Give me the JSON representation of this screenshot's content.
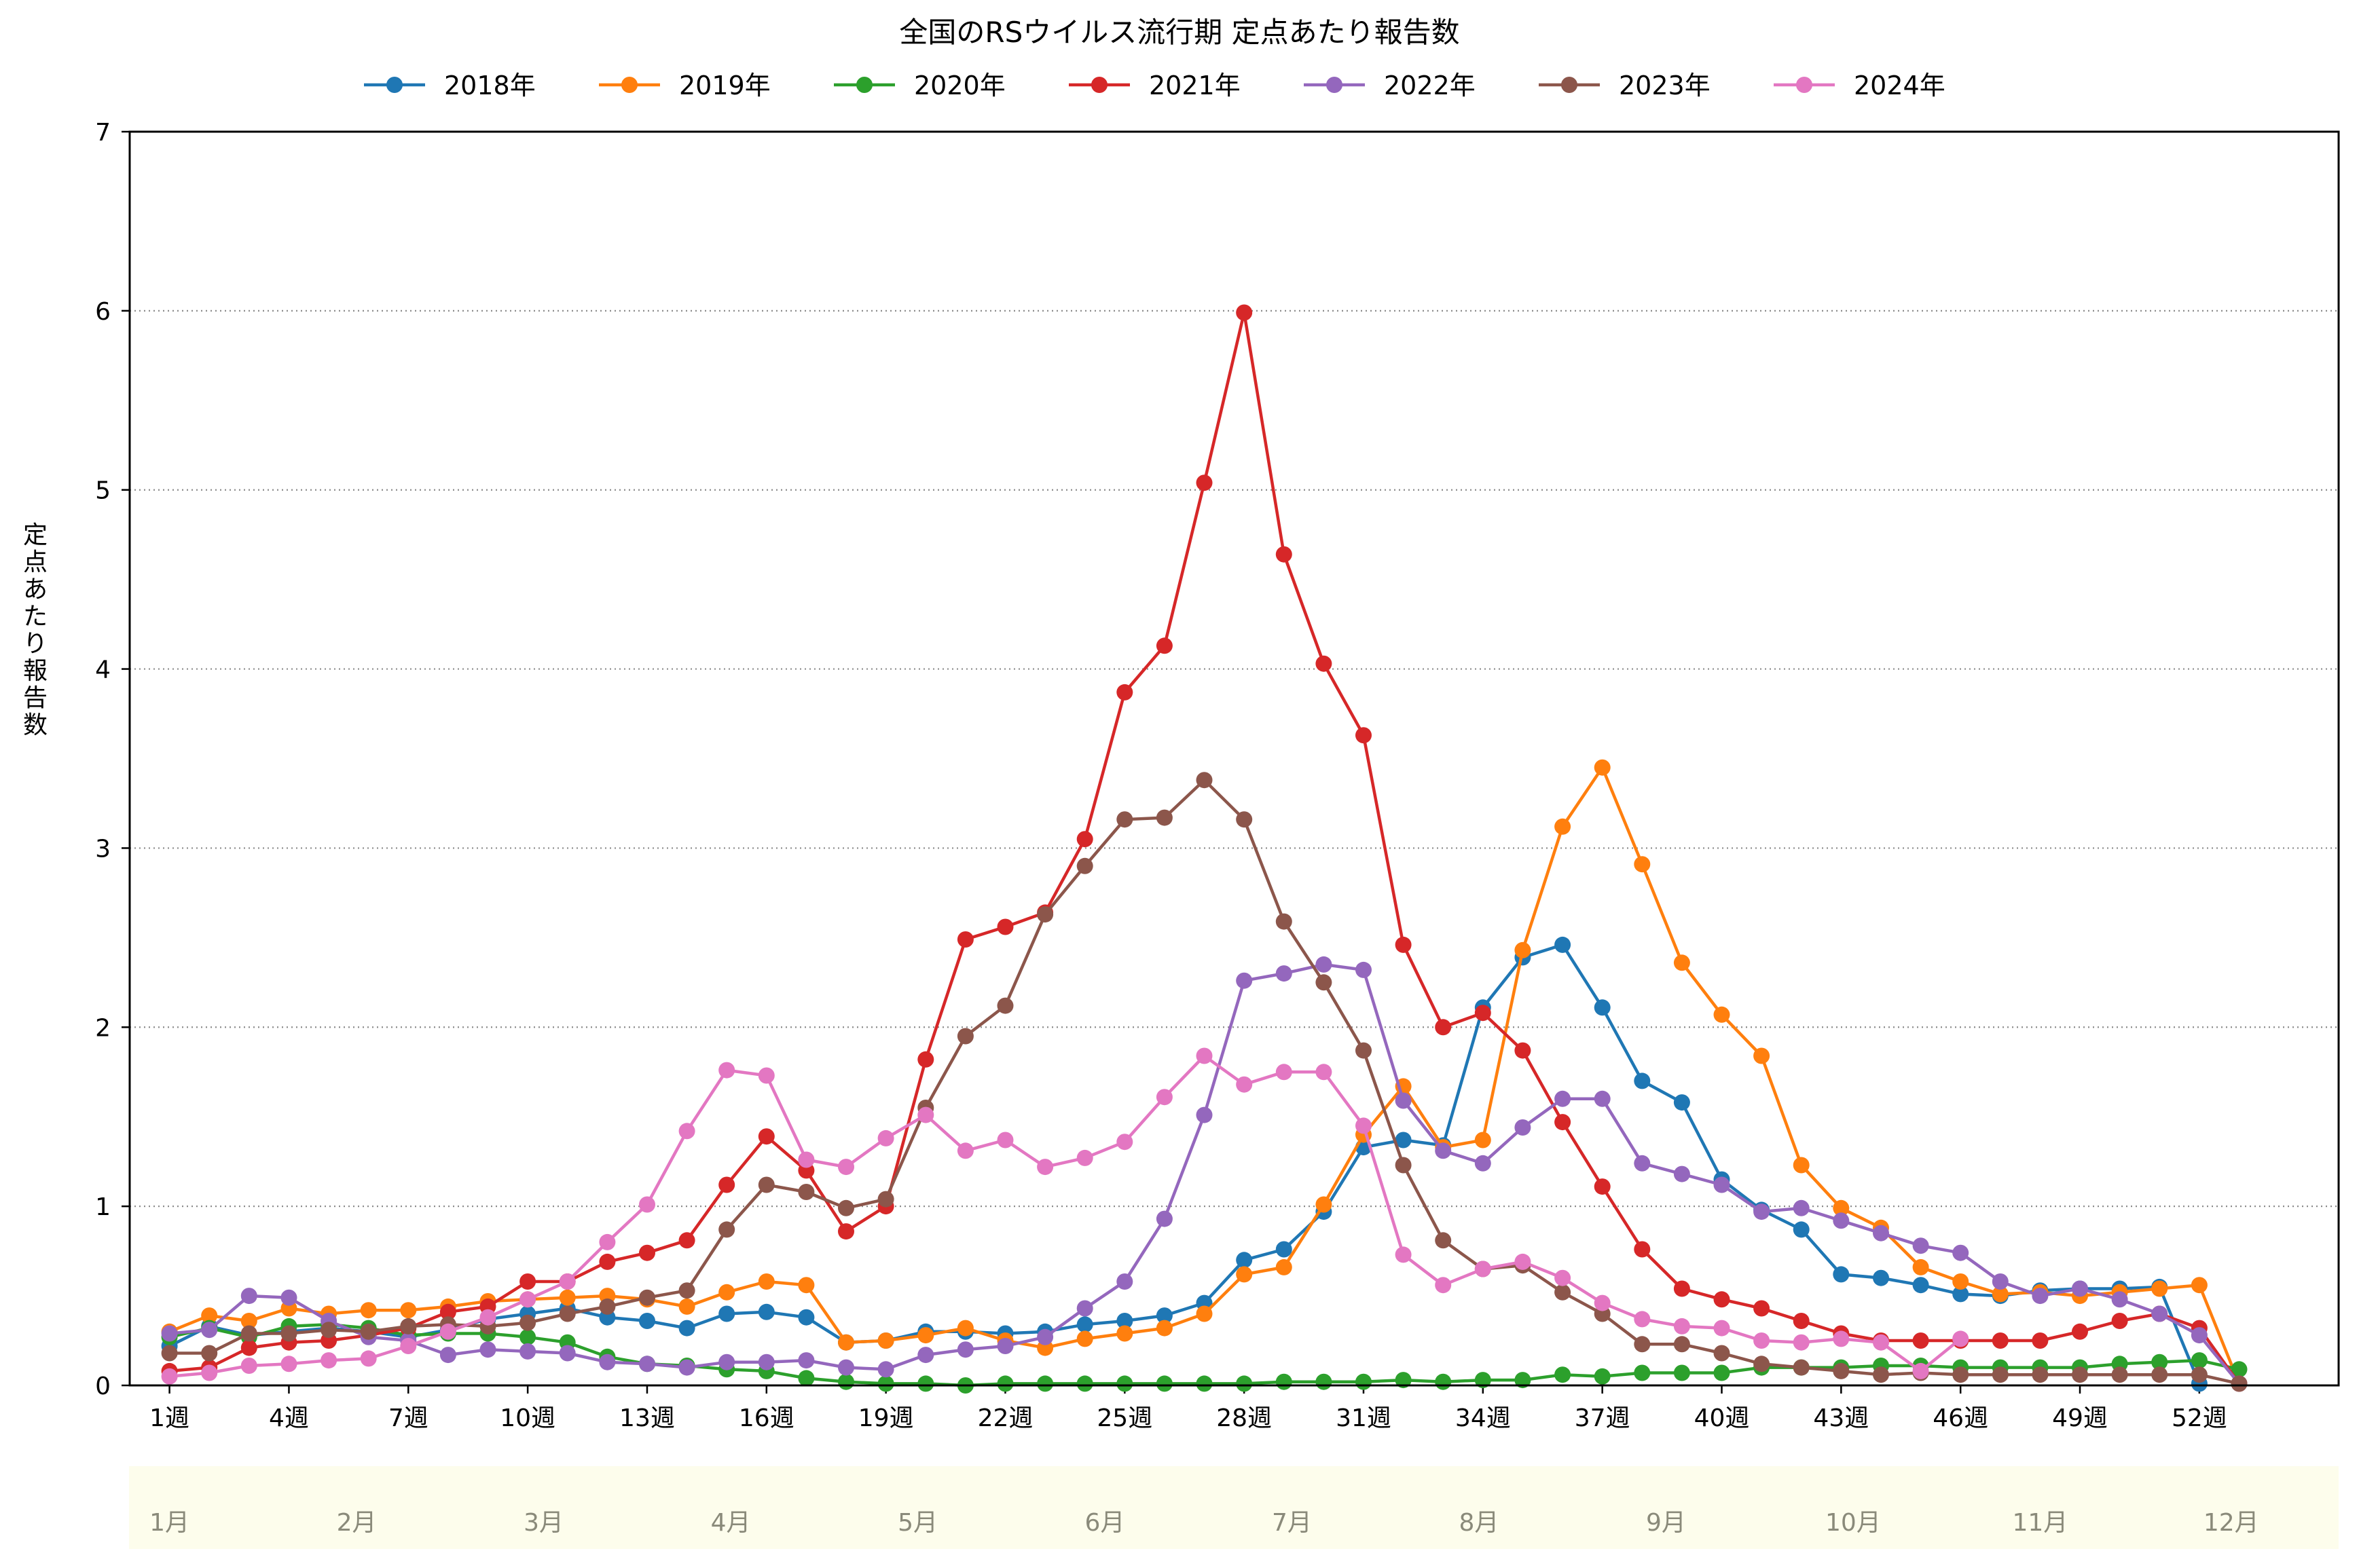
{
  "chart_data": {
    "type": "line",
    "title": "全国のRSウイルス流行期 定点あたり報告数",
    "ylabel": "定点あたり報告数",
    "xlabel": "",
    "ylim": [
      0,
      7
    ],
    "yticks": [
      0,
      1,
      2,
      3,
      4,
      5,
      6,
      7
    ],
    "x": [
      1,
      2,
      3,
      4,
      5,
      6,
      7,
      8,
      9,
      10,
      11,
      12,
      13,
      14,
      15,
      16,
      17,
      18,
      19,
      20,
      21,
      22,
      23,
      24,
      25,
      26,
      27,
      28,
      29,
      30,
      31,
      32,
      33,
      34,
      35,
      36,
      37,
      38,
      39,
      40,
      41,
      42,
      43,
      44,
      45,
      46,
      47,
      48,
      49,
      50,
      51,
      52,
      53
    ],
    "xticks": [
      {
        "week": 1,
        "label": "1週"
      },
      {
        "week": 4,
        "label": "4週"
      },
      {
        "week": 7,
        "label": "7週"
      },
      {
        "week": 10,
        "label": "10週"
      },
      {
        "week": 13,
        "label": "13週"
      },
      {
        "week": 16,
        "label": "16週"
      },
      {
        "week": 19,
        "label": "19週"
      },
      {
        "week": 22,
        "label": "22週"
      },
      {
        "week": 25,
        "label": "25週"
      },
      {
        "week": 28,
        "label": "28週"
      },
      {
        "week": 31,
        "label": "31週"
      },
      {
        "week": 34,
        "label": "34週"
      },
      {
        "week": 37,
        "label": "37週"
      },
      {
        "week": 40,
        "label": "40週"
      },
      {
        "week": 43,
        "label": "43週"
      },
      {
        "week": 46,
        "label": "46週"
      },
      {
        "week": 49,
        "label": "49週"
      },
      {
        "week": 52,
        "label": "52週"
      }
    ],
    "months": [
      {
        "label": "1月",
        "week": 1
      },
      {
        "label": "2月",
        "week": 5.7
      },
      {
        "label": "3月",
        "week": 10.4
      },
      {
        "label": "4月",
        "week": 15.1
      },
      {
        "label": "5月",
        "week": 19.8
      },
      {
        "label": "6月",
        "week": 24.5
      },
      {
        "label": "7月",
        "week": 29.2
      },
      {
        "label": "8月",
        "week": 33.9
      },
      {
        "label": "9月",
        "week": 38.6
      },
      {
        "label": "10月",
        "week": 43.3
      },
      {
        "label": "11月",
        "week": 48
      },
      {
        "label": "12月",
        "week": 52.8
      }
    ],
    "grid": "horizontal dotted",
    "legend": "top-center",
    "series": [
      {
        "name": "2018年",
        "color": "#1f77b4",
        "values": [
          0.22,
          0.33,
          0.28,
          0.3,
          0.32,
          0.3,
          0.27,
          0.31,
          0.37,
          0.4,
          0.43,
          0.38,
          0.36,
          0.32,
          0.4,
          0.41,
          0.38,
          0.24,
          0.25,
          0.3,
          0.3,
          0.29,
          0.3,
          0.34,
          0.36,
          0.39,
          0.46,
          0.7,
          0.76,
          0.97,
          1.33,
          1.37,
          1.34,
          2.11,
          2.39,
          2.46,
          2.11,
          1.7,
          1.58,
          1.15,
          0.98,
          0.87,
          0.62,
          0.6,
          0.56,
          0.51,
          0.5,
          0.53,
          0.54,
          0.54,
          0.55,
          0.01,
          null
        ]
      },
      {
        "name": "2019年",
        "color": "#ff7f0e",
        "values": [
          0.3,
          0.39,
          0.36,
          0.43,
          0.4,
          0.42,
          0.42,
          0.44,
          0.47,
          0.48,
          0.49,
          0.5,
          0.48,
          0.44,
          0.52,
          0.58,
          0.56,
          0.24,
          0.25,
          0.28,
          0.32,
          0.25,
          0.21,
          0.26,
          0.29,
          0.32,
          0.4,
          0.62,
          0.66,
          1.01,
          1.4,
          1.67,
          1.33,
          1.37,
          2.43,
          3.12,
          3.45,
          2.91,
          2.36,
          2.07,
          1.84,
          1.23,
          0.99,
          0.88,
          0.66,
          0.58,
          0.51,
          0.52,
          0.5,
          0.52,
          0.54,
          0.56,
          0.01
        ]
      },
      {
        "name": "2020年",
        "color": "#2ca02c",
        "values": [
          0.27,
          0.32,
          0.27,
          0.33,
          0.34,
          0.32,
          0.28,
          0.29,
          0.29,
          0.27,
          0.24,
          0.16,
          0.12,
          0.11,
          0.09,
          0.08,
          0.04,
          0.02,
          0.01,
          0.01,
          0.0,
          0.01,
          0.01,
          0.01,
          0.01,
          0.01,
          0.01,
          0.01,
          0.02,
          0.02,
          0.02,
          0.03,
          0.02,
          0.03,
          0.03,
          0.06,
          0.05,
          0.07,
          0.07,
          0.07,
          0.1,
          0.1,
          0.1,
          0.11,
          0.11,
          0.1,
          0.1,
          0.1,
          0.1,
          0.12,
          0.13,
          0.14,
          0.09
        ]
      },
      {
        "name": "2021年",
        "color": "#d62728",
        "values": [
          0.08,
          0.1,
          0.21,
          0.24,
          0.25,
          0.28,
          0.32,
          0.41,
          0.44,
          0.58,
          0.58,
          0.69,
          0.74,
          0.81,
          1.12,
          1.39,
          1.2,
          0.86,
          1.0,
          1.82,
          2.49,
          2.56,
          2.64,
          3.05,
          3.87,
          4.13,
          5.04,
          5.99,
          4.64,
          4.03,
          3.63,
          2.46,
          2.0,
          2.08,
          1.87,
          1.47,
          1.11,
          0.76,
          0.54,
          0.48,
          0.43,
          0.36,
          0.29,
          0.25,
          0.25,
          0.25,
          0.25,
          0.25,
          0.3,
          0.36,
          0.4,
          0.32,
          0.01
        ]
      },
      {
        "name": "2022年",
        "color": "#9467bd",
        "values": [
          0.29,
          0.31,
          0.5,
          0.49,
          0.36,
          0.27,
          0.25,
          0.17,
          0.2,
          0.19,
          0.18,
          0.13,
          0.12,
          0.1,
          0.13,
          0.13,
          0.14,
          0.1,
          0.09,
          0.17,
          0.2,
          0.22,
          0.27,
          0.43,
          0.58,
          0.93,
          1.51,
          2.26,
          2.3,
          2.35,
          2.32,
          1.59,
          1.31,
          1.24,
          1.44,
          1.6,
          1.6,
          1.24,
          1.18,
          1.12,
          0.97,
          0.99,
          0.92,
          0.85,
          0.78,
          0.74,
          0.58,
          0.5,
          0.54,
          0.48,
          0.4,
          0.28,
          0.01
        ]
      },
      {
        "name": "2023年",
        "color": "#8c564b",
        "values": [
          0.18,
          0.18,
          0.29,
          0.29,
          0.31,
          0.3,
          0.33,
          0.34,
          0.33,
          0.35,
          0.4,
          0.44,
          0.49,
          0.53,
          0.87,
          1.12,
          1.08,
          0.99,
          1.04,
          1.55,
          1.95,
          2.12,
          2.63,
          2.9,
          3.16,
          3.17,
          3.38,
          3.16,
          2.59,
          2.25,
          1.87,
          1.23,
          0.81,
          0.65,
          0.67,
          0.52,
          0.4,
          0.23,
          0.23,
          0.18,
          0.12,
          0.1,
          0.08,
          0.06,
          0.07,
          0.06,
          0.06,
          0.06,
          0.06,
          0.06,
          0.06,
          0.06,
          0.01
        ]
      },
      {
        "name": "2024年",
        "color": "#e377c2",
        "values": [
          0.05,
          0.07,
          0.11,
          0.12,
          0.14,
          0.15,
          0.22,
          0.3,
          0.38,
          0.48,
          0.58,
          0.8,
          1.01,
          1.42,
          1.76,
          1.73,
          1.26,
          1.22,
          1.38,
          1.51,
          1.31,
          1.37,
          1.22,
          1.27,
          1.36,
          1.61,
          1.84,
          1.68,
          1.75,
          1.75,
          1.45,
          0.73,
          0.56,
          0.65,
          0.69,
          0.6,
          0.46,
          0.37,
          0.33,
          0.32,
          0.25,
          0.24,
          0.26,
          0.24,
          0.08,
          0.26,
          null,
          null,
          null,
          null,
          null,
          null,
          null
        ]
      }
    ]
  }
}
